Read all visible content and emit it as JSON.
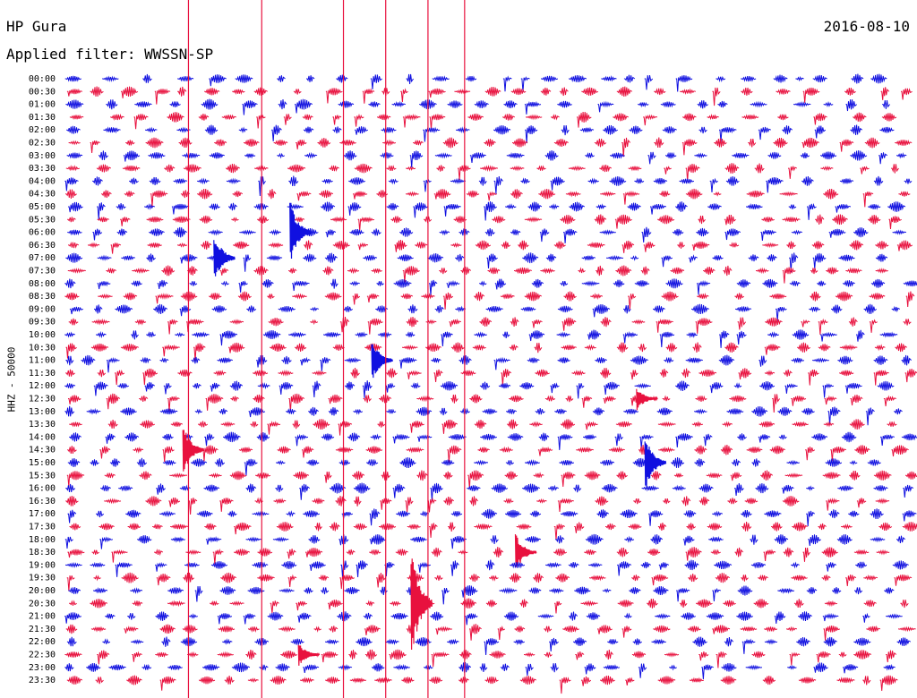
{
  "header": {
    "station": "HP Gura",
    "date": "2016-08-10",
    "filter_label": "Applied filter: WWSSN-SP"
  },
  "axis": {
    "channel_label": "HHZ - 50000"
  },
  "colors": {
    "trace_a": "#e8113e",
    "trace_b": "#1010e0",
    "background": "#ffffff"
  },
  "chart_data": {
    "type": "line",
    "title": "HP Gura",
    "subtitle": "Applied filter: WWSSN-SP",
    "ylabel": "HHZ - 50000",
    "xlabel": "",
    "tick_labels": [
      "00:00",
      "00:30",
      "01:00",
      "01:30",
      "02:00",
      "02:30",
      "03:00",
      "03:30",
      "04:00",
      "04:30",
      "05:00",
      "05:30",
      "06:00",
      "06:30",
      "07:00",
      "07:30",
      "08:00",
      "08:30",
      "09:00",
      "09:30",
      "10:00",
      "10:30",
      "11:00",
      "11:30",
      "12:00",
      "12:30",
      "13:00",
      "13:30",
      "14:00",
      "14:30",
      "15:00",
      "15:30",
      "16:00",
      "16:30",
      "17:00",
      "17:30",
      "18:00",
      "18:30",
      "19:00",
      "19:30",
      "20:00",
      "20:30",
      "21:00",
      "21:30",
      "22:00",
      "22:30",
      "23:00",
      "23:30"
    ],
    "x_range_minutes": [
      0,
      30
    ],
    "grid": false,
    "legend": "none",
    "series_color_order": [
      "trace_b",
      "trace_a"
    ],
    "vertical_marks_minutes": [
      4.4,
      7.0,
      9.9,
      11.4,
      12.9,
      14.2
    ],
    "events": [
      {
        "row": "06:00",
        "minute": 8.0,
        "amplitude": 38
      },
      {
        "row": "07:00",
        "minute": 5.3,
        "amplitude": 30
      },
      {
        "row": "11:00",
        "minute": 10.9,
        "amplitude": 26
      },
      {
        "row": "12:30",
        "minute": 20.3,
        "amplitude": 14
      },
      {
        "row": "14:30",
        "minute": 4.2,
        "amplitude": 30
      },
      {
        "row": "15:00",
        "minute": 20.6,
        "amplitude": 34
      },
      {
        "row": "18:30",
        "minute": 16.0,
        "amplitude": 22
      },
      {
        "row": "20:30",
        "minute": 12.3,
        "amplitude": 70
      },
      {
        "row": "22:30",
        "minute": 8.3,
        "amplitude": 14
      }
    ]
  }
}
